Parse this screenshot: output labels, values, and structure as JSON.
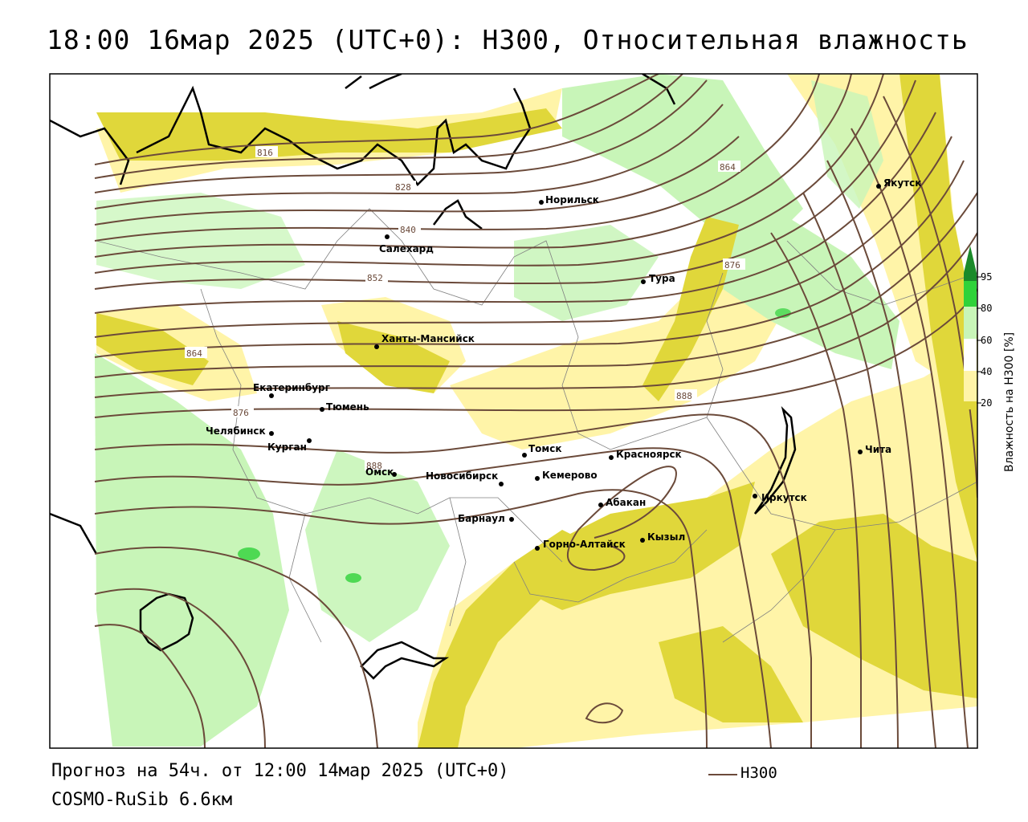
{
  "header": {
    "title": "18:00 16мар 2025 (UTC+0): H300, Относительная влажность"
  },
  "footer": {
    "forecast": "Прогноз на 54ч. от 12:00 14мар 2025 (UTC+0)",
    "model": "COSMO-RuSib 6.6км",
    "legend_label": "H300"
  },
  "colors": {
    "contour": "#6b4a3a",
    "humidity_20_40": "#fff4a8",
    "humidity_40_60": "#e0d73a",
    "humidity_60_80": "#c8f5b8",
    "humidity_80_95": "#2fd23a",
    "humidity_95_plus": "#1a8a2a",
    "border": "#000000"
  },
  "colorbar": {
    "title": "Влажность на H300 [%]",
    "ticks": [
      "95",
      "80",
      "60",
      "40",
      "20"
    ]
  },
  "cities": [
    {
      "id": "norilsk",
      "name": "Норильск"
    },
    {
      "id": "yakutsk",
      "name": "Якутск"
    },
    {
      "id": "salekhard",
      "name": "Салехард"
    },
    {
      "id": "tura",
      "name": "Тура"
    },
    {
      "id": "khanty",
      "name": "Ханты-Мансийск"
    },
    {
      "id": "ekb",
      "name": "Екатеринбург"
    },
    {
      "id": "tyumen",
      "name": "Тюмень"
    },
    {
      "id": "chelyabinsk",
      "name": "Челябинск"
    },
    {
      "id": "kurgan",
      "name": "Курган"
    },
    {
      "id": "omsk",
      "name": "Омск"
    },
    {
      "id": "novosibirsk",
      "name": "Новосибирск"
    },
    {
      "id": "tomsk",
      "name": "Томск"
    },
    {
      "id": "kemerovo",
      "name": "Кемерово"
    },
    {
      "id": "krasnoyarsk",
      "name": "Красноярск"
    },
    {
      "id": "abakan",
      "name": "Абакан"
    },
    {
      "id": "barnaul",
      "name": "Барнаул"
    },
    {
      "id": "gorno",
      "name": "Горно-Алтайск"
    },
    {
      "id": "kyzyl",
      "name": "Кызыл"
    },
    {
      "id": "irkutsk",
      "name": "Иркутск"
    },
    {
      "id": "chita",
      "name": "Чита"
    }
  ],
  "contour_labels": {
    "c816": "816",
    "c828": "828",
    "c840": "840",
    "c852": "852",
    "c864a": "864",
    "c864b": "864",
    "c876a": "876",
    "c876b": "876",
    "c888a": "888",
    "c888b": "888"
  }
}
